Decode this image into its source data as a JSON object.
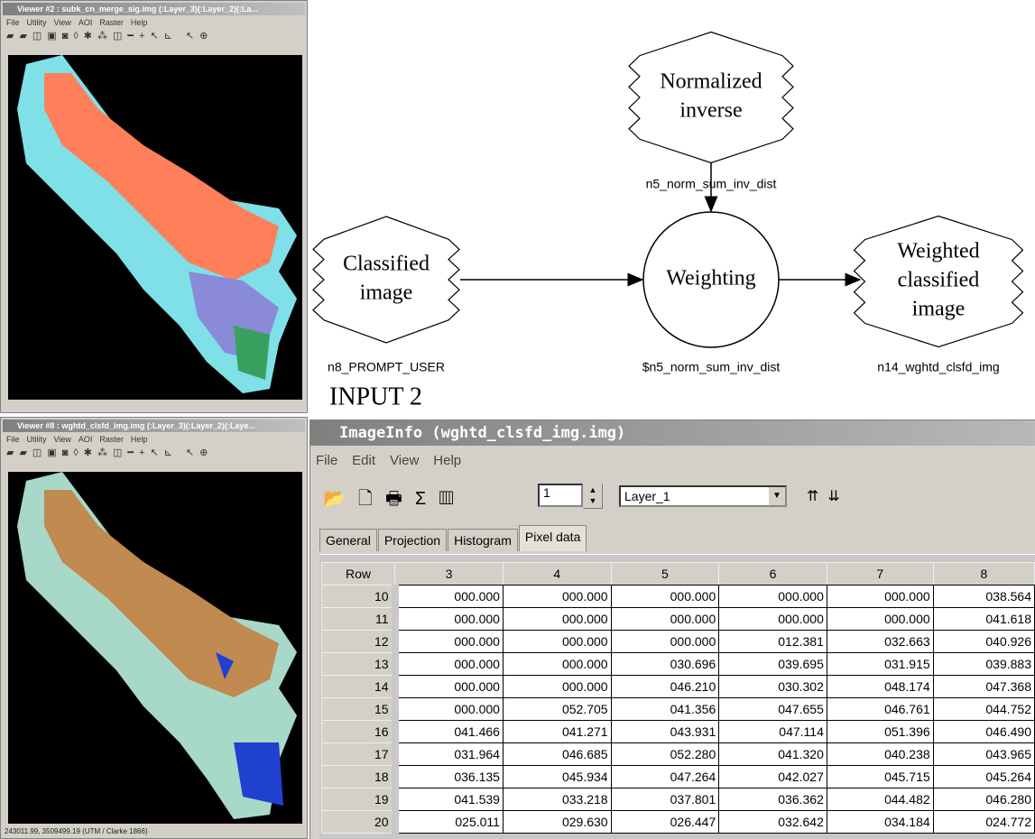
{
  "viewer_top": {
    "title": "Viewer #2 : subk_cn_merge_sig.img (:Layer_3)(:Layer_2)(:La...",
    "menu": [
      "File",
      "Utility",
      "View",
      "AOI",
      "Raster",
      "Help"
    ]
  },
  "viewer_bottom": {
    "title": "Viewer #8 : wghtd_clsfd_img.img (:Layer_3)(:Layer_2)(:Laye...",
    "menu": [
      "File",
      "Utility",
      "View",
      "AOI",
      "Raster",
      "Help"
    ],
    "status": "243011.99, 3509499.19  (UTM / Clarke 1866)"
  },
  "diagram": {
    "nodes": [
      {
        "lines": [
          "Normalized",
          "inverse"
        ],
        "label": "n5_norm_sum_inv_dist"
      },
      {
        "lines": [
          "Classified",
          "image"
        ],
        "label": "n8_PROMPT_USER"
      },
      {
        "lines": [
          "Weighting"
        ],
        "label": "$n5_norm_sum_inv_dist"
      },
      {
        "lines": [
          "Weighted",
          "classified",
          "image"
        ],
        "label": "n14_wghtd_clsfd_img"
      }
    ],
    "input_label": "INPUT 2"
  },
  "image_info": {
    "title": "ImageInfo (wghtd_clsfd_img.img)",
    "menu": [
      "File",
      "Edit",
      "View",
      "Help"
    ],
    "layer_spin": "1",
    "layer_combo": "Layer_1",
    "tabs": [
      "General",
      "Projection",
      "Histogram",
      "Pixel data"
    ],
    "table": {
      "header": [
        "Row",
        "3",
        "4",
        "5",
        "6",
        "7",
        "8"
      ],
      "rows": [
        [
          "10",
          "000.000",
          "000.000",
          "000.000",
          "000.000",
          "000.000",
          "038.564"
        ],
        [
          "11",
          "000.000",
          "000.000",
          "000.000",
          "000.000",
          "000.000",
          "041.618"
        ],
        [
          "12",
          "000.000",
          "000.000",
          "000.000",
          "012.381",
          "032.663",
          "040.926"
        ],
        [
          "13",
          "000.000",
          "000.000",
          "030.696",
          "039.695",
          "031.915",
          "039.883"
        ],
        [
          "14",
          "000.000",
          "000.000",
          "046.210",
          "030.302",
          "048.174",
          "047.368"
        ],
        [
          "15",
          "000.000",
          "052.705",
          "041.356",
          "047.655",
          "046.761",
          "044.752"
        ],
        [
          "16",
          "041.466",
          "041.271",
          "043.931",
          "047.114",
          "051.396",
          "046.490"
        ],
        [
          "17",
          "031.964",
          "046.685",
          "052.280",
          "041.320",
          "040.238",
          "043.965"
        ],
        [
          "18",
          "036.135",
          "045.934",
          "047.264",
          "042.027",
          "045.715",
          "045.264"
        ],
        [
          "19",
          "041.539",
          "033.218",
          "037.801",
          "036.362",
          "044.482",
          "046.280"
        ],
        [
          "20",
          "025.011",
          "029.630",
          "026.447",
          "032.642",
          "034.184",
          "024.772"
        ]
      ]
    }
  }
}
